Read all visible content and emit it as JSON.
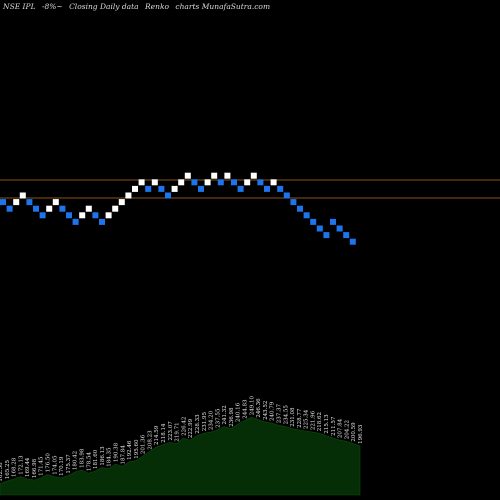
{
  "header": {
    "symbol": "NSE IPL",
    "change": "-8%~",
    "type": "Closing Daily data",
    "chart_name": "Renko",
    "brand": "charts MunafaSutra.com"
  },
  "colors": {
    "background": "#000000",
    "up_brick": "#ffffff",
    "down_brick": "#1e74ea",
    "level_line": "#b4701c",
    "volume_fill": "#062e06",
    "volume_line": "#0e4a0e"
  },
  "chart_data": {
    "type": "renko",
    "levels": [
      "upper",
      "lower"
    ],
    "bricks": [
      {
        "dir": "down",
        "level": -1
      },
      {
        "dir": "down",
        "level": -2
      },
      {
        "dir": "up",
        "level": -1
      },
      {
        "dir": "up",
        "level": 0
      },
      {
        "dir": "down",
        "level": -1
      },
      {
        "dir": "down",
        "level": -2
      },
      {
        "dir": "down",
        "level": -3
      },
      {
        "dir": "up",
        "level": -2
      },
      {
        "dir": "up",
        "level": -1
      },
      {
        "dir": "down",
        "level": -2
      },
      {
        "dir": "down",
        "level": -3
      },
      {
        "dir": "down",
        "level": -4
      },
      {
        "dir": "up",
        "level": -3
      },
      {
        "dir": "up",
        "level": -2
      },
      {
        "dir": "down",
        "level": -3
      },
      {
        "dir": "down",
        "level": -4
      },
      {
        "dir": "up",
        "level": -3
      },
      {
        "dir": "up",
        "level": -2
      },
      {
        "dir": "up",
        "level": -1
      },
      {
        "dir": "up",
        "level": 0
      },
      {
        "dir": "up",
        "level": 1
      },
      {
        "dir": "up",
        "level": 2
      },
      {
        "dir": "down",
        "level": 1
      },
      {
        "dir": "up",
        "level": 2
      },
      {
        "dir": "down",
        "level": 1
      },
      {
        "dir": "down",
        "level": 0
      },
      {
        "dir": "up",
        "level": 1
      },
      {
        "dir": "up",
        "level": 2
      },
      {
        "dir": "up",
        "level": 3
      },
      {
        "dir": "down",
        "level": 2
      },
      {
        "dir": "down",
        "level": 1
      },
      {
        "dir": "up",
        "level": 2
      },
      {
        "dir": "up",
        "level": 3
      },
      {
        "dir": "down",
        "level": 2
      },
      {
        "dir": "up",
        "level": 3
      },
      {
        "dir": "down",
        "level": 2
      },
      {
        "dir": "down",
        "level": 1
      },
      {
        "dir": "up",
        "level": 2
      },
      {
        "dir": "up",
        "level": 3
      },
      {
        "dir": "down",
        "level": 2
      },
      {
        "dir": "down",
        "level": 1
      },
      {
        "dir": "up",
        "level": 2
      },
      {
        "dir": "down",
        "level": 1
      },
      {
        "dir": "down",
        "level": 0
      },
      {
        "dir": "down",
        "level": -1
      },
      {
        "dir": "down",
        "level": -2
      },
      {
        "dir": "down",
        "level": -3
      },
      {
        "dir": "down",
        "level": -4
      },
      {
        "dir": "down",
        "level": -5
      },
      {
        "dir": "down",
        "level": -6
      },
      {
        "dir": "down",
        "level": -4
      },
      {
        "dir": "down",
        "level": -5
      },
      {
        "dir": "down",
        "level": -6
      },
      {
        "dir": "down",
        "level": -7
      }
    ],
    "volume": [
      10,
      12,
      14,
      16,
      14,
      13,
      15,
      18,
      16,
      15,
      17,
      20,
      22,
      19,
      21,
      24,
      23,
      27,
      25,
      29,
      30,
      34,
      38,
      42,
      44,
      46,
      45,
      50,
      48,
      52,
      54,
      55,
      57,
      60,
      58,
      62,
      65,
      68,
      66,
      64,
      63,
      61,
      60,
      58,
      57,
      56,
      55,
      54,
      52,
      50,
      48,
      47,
      45,
      43
    ],
    "bar_labels": [
      "162.58",
      "165.25",
      "168.28",
      "172.13",
      "169.44",
      "166.98",
      "171.45",
      "176.50",
      "174.05",
      "170.19",
      "175.37",
      "180.42",
      "183.98",
      "178.54",
      "181.60",
      "186.13",
      "184.35",
      "190.38",
      "187.84",
      "192.46",
      "195.60",
      "201.36",
      "208.23",
      "214.59",
      "218.14",
      "223.07",
      "219.71",
      "226.42",
      "222.99",
      "228.33",
      "231.95",
      "234.20",
      "237.55",
      "241.32",
      "236.98",
      "240.16",
      "244.83",
      "249.10",
      "246.36",
      "243.52",
      "240.79",
      "237.37",
      "234.55",
      "231.08",
      "228.77",
      "225.34",
      "221.96",
      "218.62",
      "215.13",
      "211.57",
      "207.84",
      "204.22",
      "200.59",
      "196.93"
    ],
    "series": [
      {
        "name": "Volume",
        "values": [
          10,
          12,
          14,
          16,
          14,
          13,
          15,
          18,
          16,
          15,
          17,
          20,
          22,
          19,
          21,
          24,
          23,
          27,
          25,
          29,
          30,
          34,
          38,
          42,
          44,
          46,
          45,
          50,
          48,
          52,
          54,
          55,
          57,
          60,
          58,
          62,
          65,
          68,
          66,
          64,
          63,
          61,
          60,
          58,
          57,
          56,
          55,
          54,
          52,
          50,
          48,
          47,
          45,
          43
        ]
      }
    ]
  }
}
